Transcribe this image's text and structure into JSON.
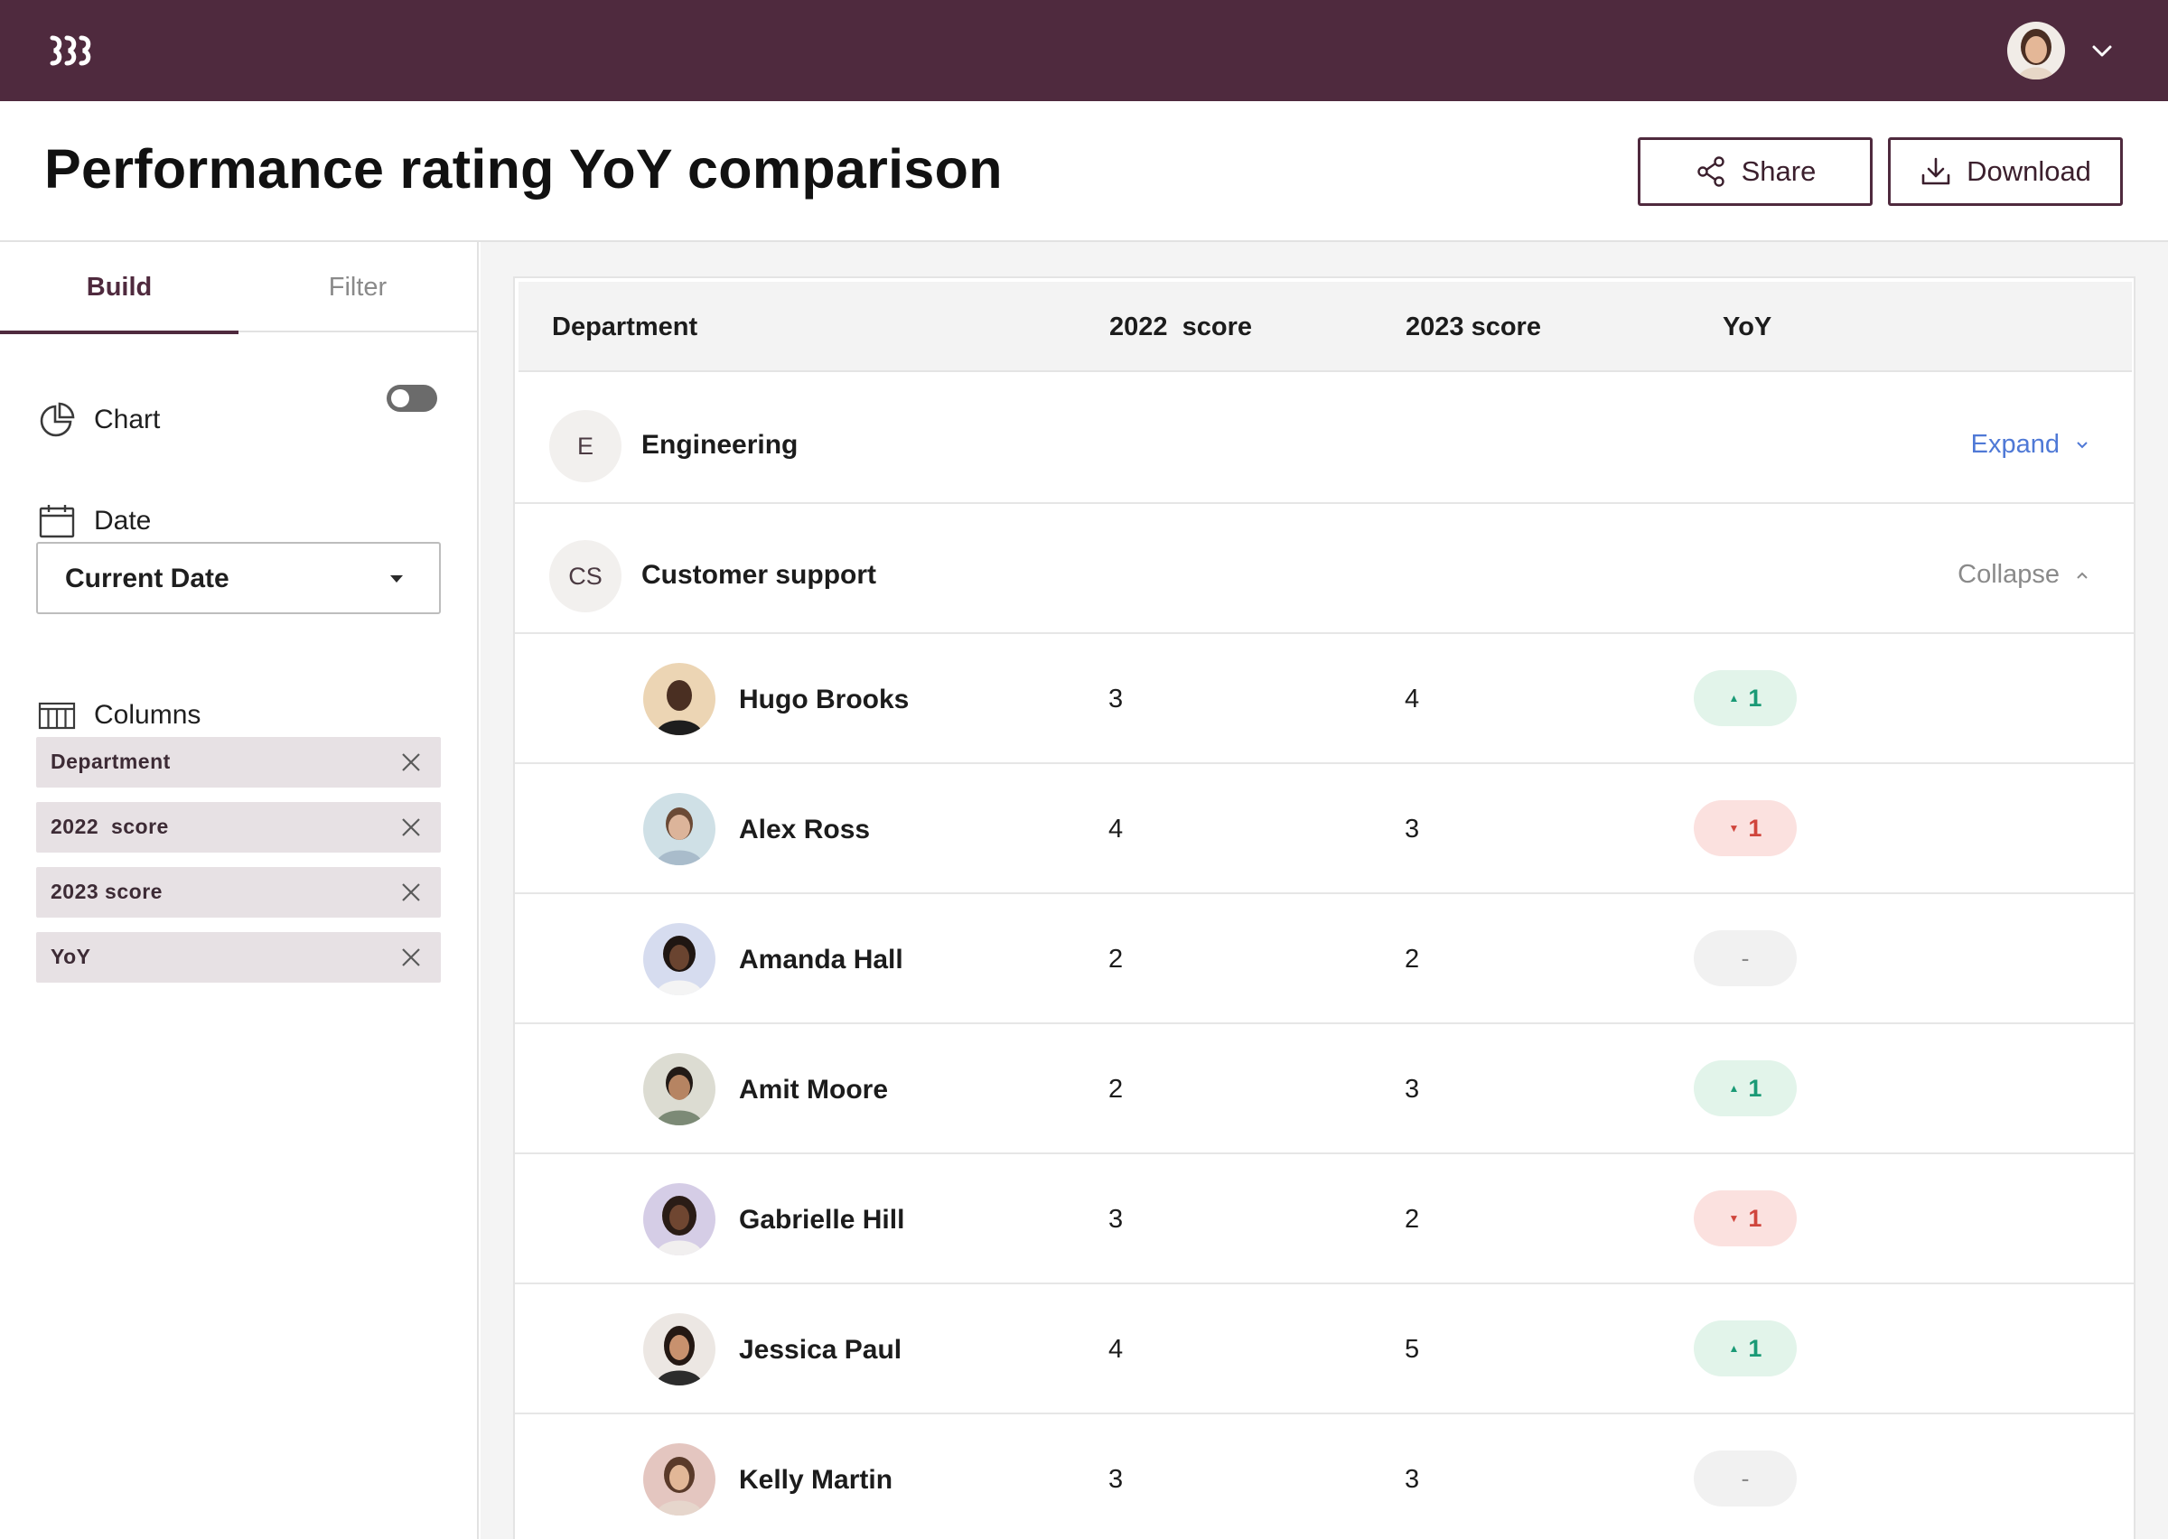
{
  "topbar": {
    "logo_icon": "brand-logo-icon",
    "menu_icon": "chevron-down-icon"
  },
  "header": {
    "title": "Performance rating YoY comparison",
    "share_label": "Share",
    "download_label": "Download"
  },
  "sidebar": {
    "tabs": [
      {
        "label": "Build",
        "active": true
      },
      {
        "label": "Filter",
        "active": false
      }
    ],
    "chart_label": "Chart",
    "chart_toggle_on": false,
    "date_label": "Date",
    "date_select_value": "Current Date",
    "columns_label": "Columns",
    "column_chips": [
      "Department",
      "2022  score",
      "2023 score",
      "YoY"
    ]
  },
  "table": {
    "headers": {
      "department": "Department",
      "score_2022": "2022  score",
      "score_2023": "2023 score",
      "yoy": "YoY"
    },
    "groups": [
      {
        "initials": "E",
        "name": "Engineering",
        "action": "Expand"
      },
      {
        "initials": "CS",
        "name": "Customer support",
        "action": "Collapse"
      }
    ],
    "rows": [
      {
        "name": "Hugo Brooks",
        "score_2022": "3",
        "score_2023": "4",
        "yoy": "1",
        "trend": "up"
      },
      {
        "name": "Alex Ross",
        "score_2022": "4",
        "score_2023": "3",
        "yoy": "1",
        "trend": "down"
      },
      {
        "name": "Amanda Hall",
        "score_2022": "2",
        "score_2023": "2",
        "yoy": "-",
        "trend": "flat"
      },
      {
        "name": "Amit Moore",
        "score_2022": "2",
        "score_2023": "3",
        "yoy": "1",
        "trend": "up"
      },
      {
        "name": "Gabrielle Hill",
        "score_2022": "3",
        "score_2023": "2",
        "yoy": "1",
        "trend": "down"
      },
      {
        "name": "Jessica Paul",
        "score_2022": "4",
        "score_2023": "5",
        "yoy": "1",
        "trend": "up"
      },
      {
        "name": "Kelly Martin",
        "score_2022": "3",
        "score_2023": "3",
        "yoy": "-",
        "trend": "flat"
      }
    ]
  },
  "colors": {
    "brand": "#4f2a3e",
    "link": "#4f79d6",
    "up": "#1a9a76",
    "down": "#d0453c"
  }
}
